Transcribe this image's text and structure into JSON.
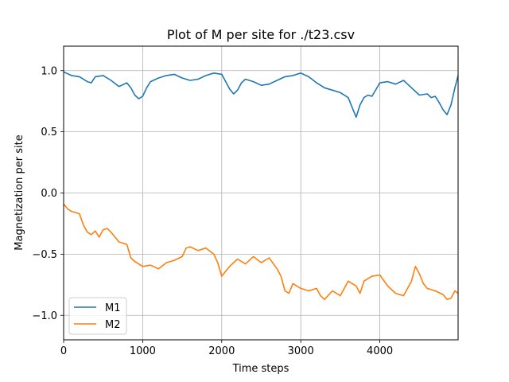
{
  "chart_data": {
    "type": "line",
    "title": "Plot of M per site for ./t23.csv",
    "xlabel": "Time steps",
    "ylabel": "Magnetization per site",
    "xlim": [
      0,
      4990
    ],
    "ylim": [
      -1.2,
      1.2
    ],
    "xticks": [
      0,
      1000,
      2000,
      3000,
      4000
    ],
    "xtick_labels": [
      "0",
      "1000",
      "2000",
      "3000",
      "4000"
    ],
    "yticks": [
      -1.0,
      -0.5,
      0.0,
      0.5,
      1.0
    ],
    "ytick_labels": [
      "−1.0",
      "−0.5",
      "0.0",
      "0.5",
      "1.0"
    ],
    "grid": true,
    "legend_position": "lower-left",
    "series": [
      {
        "name": "M1",
        "color": "#1f77b4",
        "x": [
          0,
          100,
          200,
          300,
          350,
          400,
          500,
          600,
          700,
          800,
          850,
          900,
          950,
          1000,
          1050,
          1100,
          1200,
          1300,
          1400,
          1500,
          1600,
          1700,
          1800,
          1900,
          2000,
          2050,
          2100,
          2150,
          2200,
          2250,
          2300,
          2400,
          2500,
          2600,
          2700,
          2800,
          2900,
          3000,
          3100,
          3200,
          3300,
          3400,
          3500,
          3600,
          3650,
          3700,
          3750,
          3800,
          3850,
          3900,
          4000,
          4100,
          4200,
          4300,
          4400,
          4500,
          4600,
          4650,
          4700,
          4750,
          4800,
          4850,
          4900,
          4950,
          4990
        ],
        "values": [
          0.99,
          0.96,
          0.95,
          0.91,
          0.9,
          0.95,
          0.96,
          0.92,
          0.87,
          0.9,
          0.86,
          0.8,
          0.77,
          0.79,
          0.86,
          0.91,
          0.94,
          0.96,
          0.97,
          0.94,
          0.92,
          0.93,
          0.96,
          0.98,
          0.97,
          0.91,
          0.85,
          0.81,
          0.84,
          0.9,
          0.93,
          0.91,
          0.88,
          0.89,
          0.92,
          0.95,
          0.96,
          0.98,
          0.95,
          0.9,
          0.86,
          0.84,
          0.82,
          0.78,
          0.7,
          0.62,
          0.72,
          0.78,
          0.8,
          0.79,
          0.9,
          0.91,
          0.89,
          0.92,
          0.86,
          0.8,
          0.81,
          0.78,
          0.79,
          0.74,
          0.68,
          0.64,
          0.72,
          0.86,
          0.96
        ]
      },
      {
        "name": "M2",
        "color": "#ff7f0e",
        "x": [
          0,
          50,
          100,
          200,
          250,
          300,
          350,
          400,
          450,
          500,
          550,
          600,
          700,
          800,
          850,
          900,
          950,
          1000,
          1100,
          1200,
          1300,
          1400,
          1500,
          1550,
          1600,
          1700,
          1800,
          1900,
          1950,
          2000,
          2100,
          2200,
          2300,
          2400,
          2500,
          2600,
          2700,
          2750,
          2800,
          2850,
          2900,
          3000,
          3100,
          3200,
          3250,
          3300,
          3400,
          3500,
          3600,
          3700,
          3750,
          3800,
          3900,
          4000,
          4100,
          4200,
          4300,
          4400,
          4450,
          4500,
          4550,
          4600,
          4700,
          4800,
          4850,
          4900,
          4950,
          4990
        ],
        "values": [
          -0.09,
          -0.13,
          -0.15,
          -0.17,
          -0.26,
          -0.32,
          -0.34,
          -0.31,
          -0.36,
          -0.3,
          -0.29,
          -0.32,
          -0.4,
          -0.42,
          -0.53,
          -0.56,
          -0.58,
          -0.6,
          -0.59,
          -0.62,
          -0.57,
          -0.55,
          -0.52,
          -0.45,
          -0.44,
          -0.47,
          -0.45,
          -0.5,
          -0.57,
          -0.68,
          -0.6,
          -0.54,
          -0.58,
          -0.52,
          -0.57,
          -0.53,
          -0.62,
          -0.68,
          -0.8,
          -0.82,
          -0.74,
          -0.78,
          -0.8,
          -0.78,
          -0.84,
          -0.87,
          -0.8,
          -0.84,
          -0.72,
          -0.76,
          -0.82,
          -0.72,
          -0.68,
          -0.67,
          -0.76,
          -0.82,
          -0.84,
          -0.72,
          -0.6,
          -0.66,
          -0.74,
          -0.78,
          -0.8,
          -0.83,
          -0.87,
          -0.86,
          -0.8,
          -0.82
        ]
      }
    ]
  }
}
